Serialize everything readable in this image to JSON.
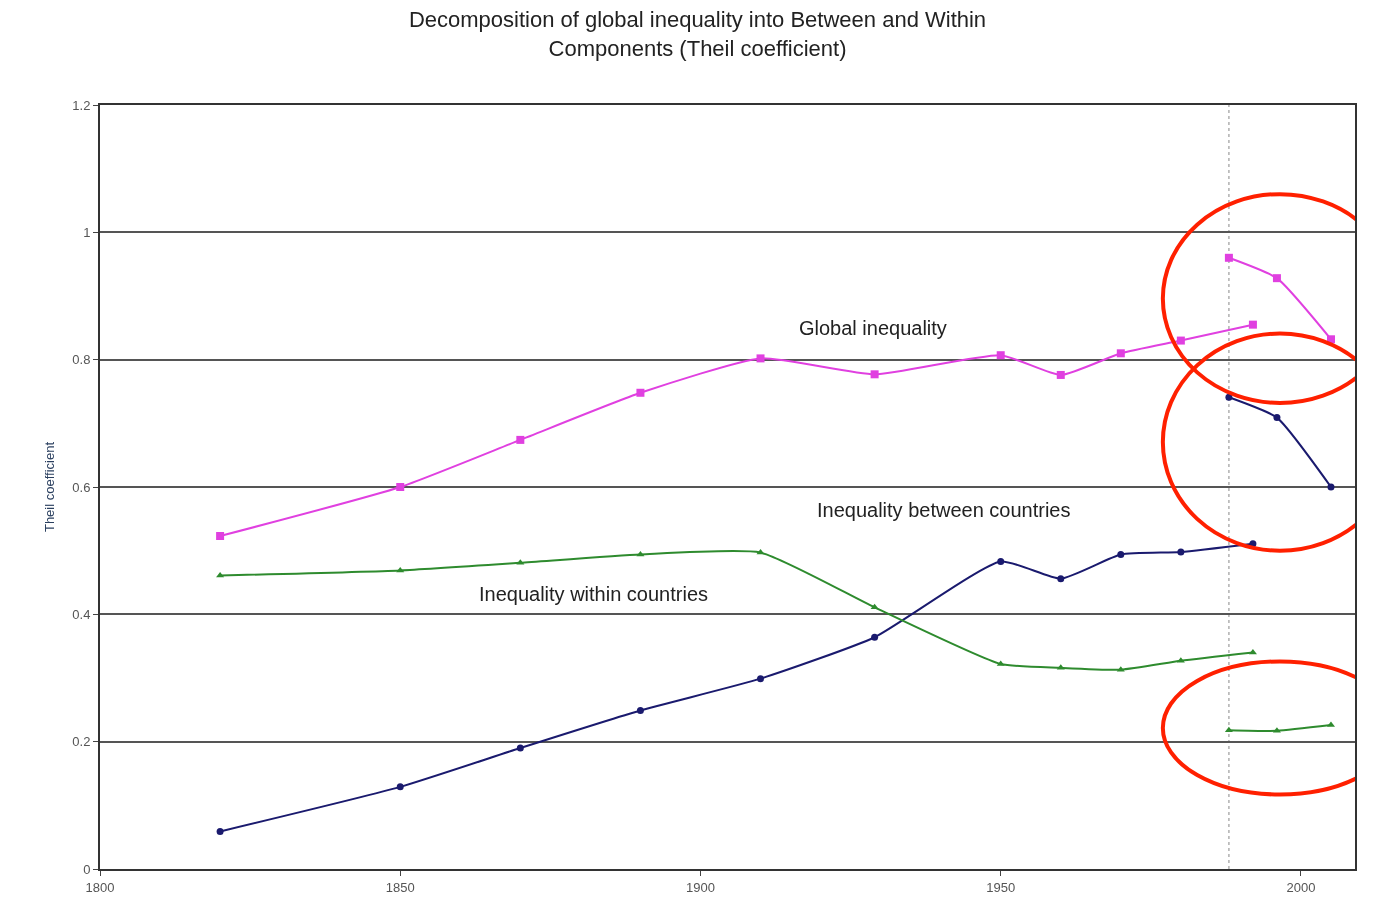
{
  "chart_data": {
    "type": "line",
    "title": "Decomposition of global inequality into Between and Within\nComponents (Theil coefficient)",
    "ylabel": "Theil coefficient",
    "x": [
      1820,
      1850,
      1870,
      1890,
      1910,
      1929,
      1950,
      1960,
      1970,
      1980,
      1992
    ],
    "series": [
      {
        "color": "#e040e0",
        "marker": "square",
        "values": [
          0.523,
          0.6,
          0.674,
          0.748,
          0.802,
          0.777,
          0.807,
          0.776,
          0.81,
          0.83,
          0.855
        ]
      },
      {
        "color": "#1a1a6e",
        "marker": "circle",
        "values": [
          0.059,
          0.129,
          0.19,
          0.249,
          0.299,
          0.364,
          0.483,
          0.456,
          0.494,
          0.498,
          0.511
        ]
      },
      {
        "color": "#2e8b2e",
        "marker": "triangle",
        "values": [
          0.461,
          0.469,
          0.481,
          0.494,
          0.497,
          0.411,
          0.322,
          0.316,
          0.313,
          0.327,
          0.34
        ]
      },
      {
        "color": "#e040e0",
        "marker": "square",
        "x": [
          1988,
          1996,
          2005
        ],
        "values": [
          0.96,
          0.928,
          0.832
        ]
      },
      {
        "color": "#1a1a6e",
        "marker": "circle",
        "x": [
          1988,
          1996,
          2005
        ],
        "values": [
          0.741,
          0.709,
          0.6
        ]
      },
      {
        "color": "#2e8b2e",
        "marker": "triangle",
        "x": [
          1988,
          1996,
          2005
        ],
        "values": [
          0.218,
          0.217,
          0.226
        ]
      }
    ],
    "annotations": [
      "Global inequality",
      "Inequality between countries",
      "Inequality within countries"
    ],
    "ref_lines": [
      {
        "axis": "x",
        "value": 1988,
        "color": "#b0b0b0",
        "line_style": "dotted"
      }
    ],
    "xlim": [
      1800,
      2009
    ],
    "xticks": [
      1800,
      1850,
      1900,
      1950,
      2000
    ],
    "ylim": [
      0,
      1.2
    ],
    "yticks": [
      0,
      0.2,
      0.4,
      0.6,
      0.8,
      1,
      1.2
    ],
    "grid": "y",
    "line_style": "solid"
  }
}
